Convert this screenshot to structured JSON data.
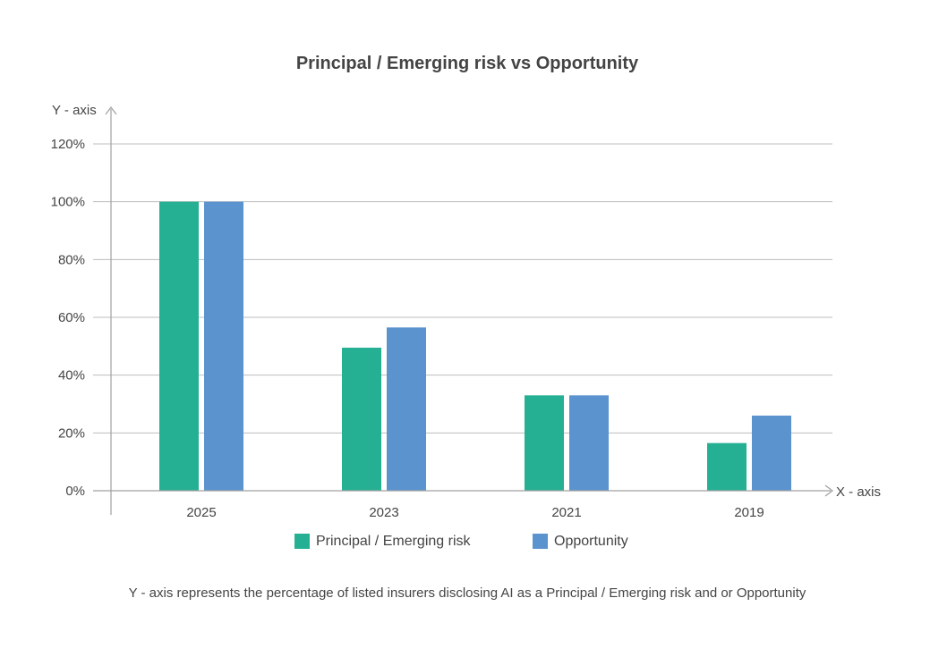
{
  "chart_data": {
    "type": "bar",
    "title": "Principal / Emerging risk vs Opportunity",
    "ylabel": "Y - axis",
    "xlabel": "X - axis",
    "categories": [
      "2025",
      "2023",
      "2021",
      "2019"
    ],
    "series": [
      {
        "name": "Principal / Emerging risk",
        "values": [
          100,
          49.5,
          33,
          16.5
        ],
        "color": "#26b093"
      },
      {
        "name": "Opportunity",
        "values": [
          100,
          56.5,
          33,
          26
        ],
        "color": "#5b93ce"
      }
    ],
    "ylim": [
      0,
      120
    ],
    "yticks": [
      "0%",
      "20%",
      "40%",
      "60%",
      "80%",
      "100%",
      "120%"
    ],
    "grid": true,
    "legend_position": "bottom",
    "footnote": "Y - axis represents the percentage of listed insurers disclosing AI as a Principal / Emerging risk and or Opportunity"
  }
}
